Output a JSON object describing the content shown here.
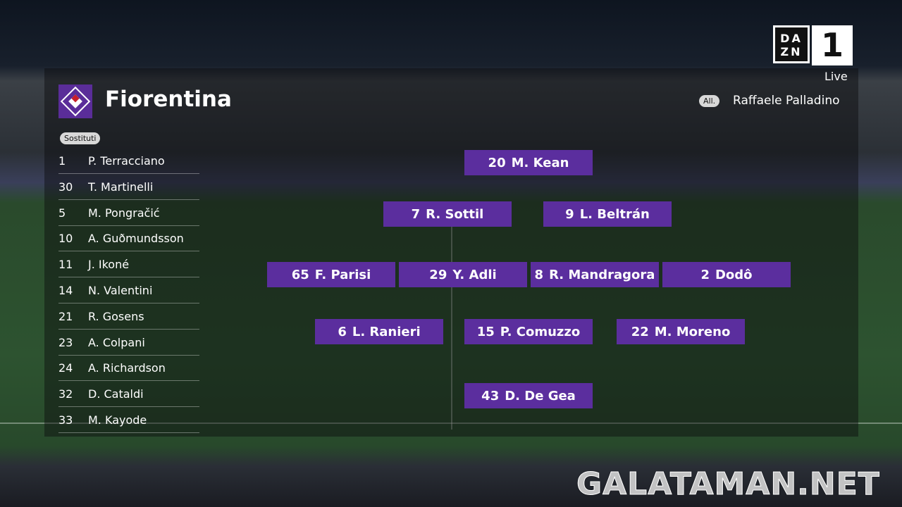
{
  "broadcaster": {
    "logo_text": "DAZN",
    "channel": "1",
    "status": "Live"
  },
  "team": {
    "name": "Fiorentina",
    "crest_color": "#5b2e9e",
    "coach_label": "All.",
    "coach": "Raffaele Palladino"
  },
  "subs": {
    "label": "Sostituti",
    "items": [
      {
        "num": "1",
        "name": "P. Terracciano"
      },
      {
        "num": "30",
        "name": "T. Martinelli"
      },
      {
        "num": "5",
        "name": "M. Pongračić"
      },
      {
        "num": "10",
        "name": "A. Guðmundsson"
      },
      {
        "num": "11",
        "name": "J. Ikoné"
      },
      {
        "num": "14",
        "name": "N. Valentini"
      },
      {
        "num": "21",
        "name": "R. Gosens"
      },
      {
        "num": "23",
        "name": "A. Colpani"
      },
      {
        "num": "24",
        "name": "A. Richardson"
      },
      {
        "num": "32",
        "name": "D. Cataldi"
      },
      {
        "num": "33",
        "name": "M. Kayode"
      }
    ]
  },
  "lineup": [
    {
      "num": "20",
      "name": "M. Kean"
    },
    {
      "num": "7",
      "name": "R. Sottil"
    },
    {
      "num": "9",
      "name": "L. Beltrán"
    },
    {
      "num": "65",
      "name": "F. Parisi"
    },
    {
      "num": "29",
      "name": "Y. Adli"
    },
    {
      "num": "8",
      "name": "R. Mandragora"
    },
    {
      "num": "2",
      "name": "Dodô"
    },
    {
      "num": "6",
      "name": "L. Ranieri"
    },
    {
      "num": "15",
      "name": "P. Comuzzo"
    },
    {
      "num": "22",
      "name": "M. Moreno"
    },
    {
      "num": "43",
      "name": "D. De Gea"
    }
  ],
  "watermark": "GALATAMAN.NET"
}
